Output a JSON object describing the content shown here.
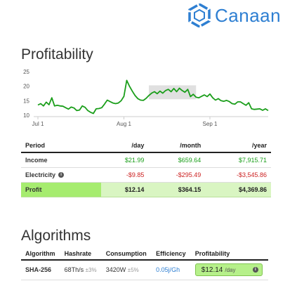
{
  "brand": {
    "name": "Canaan",
    "logo_color": "#2e7fd2"
  },
  "profitability": {
    "title": "Profitability",
    "chart_data": {
      "type": "line",
      "title": "",
      "xlabel": "",
      "ylabel": "",
      "ylim": [
        10,
        25
      ],
      "yticks": [
        10,
        15,
        20,
        25
      ],
      "x_tick_labels": [
        "Jul 1",
        "Aug 1",
        "Sep 1"
      ],
      "x_tick_index": [
        0,
        31,
        62
      ],
      "series": [
        {
          "color": "#1a9e1a",
          "values": [
            13.5,
            14,
            13.2,
            14.5,
            13.6,
            16,
            13.2,
            13.4,
            13.2,
            13.1,
            12.6,
            12.1,
            12.8,
            12.5,
            11.6,
            11.8,
            13.2,
            12.7,
            11.6,
            11.0,
            10.6,
            12.2,
            12.3,
            12.6,
            13.8,
            15.2,
            14.7,
            14.2,
            14.0,
            14.2,
            15.0,
            16.5,
            22.0,
            20.0,
            18.3,
            16.8,
            15.7,
            15.2,
            15.1,
            15.8,
            16.8,
            17.6,
            18.1,
            17.4,
            18.3,
            17.6,
            18.5,
            18.9,
            18.1,
            19.2,
            18.1,
            19.3,
            18.5,
            17.9,
            18.9,
            16.4,
            17.2,
            16.2,
            16.0,
            16.5,
            17.0,
            16.4,
            17.3,
            16.0,
            15.2,
            15.7,
            15.0,
            14.8,
            15.1,
            14.7,
            14.0,
            13.8,
            14.6,
            14.6,
            14.0,
            13.4,
            14.3,
            12.2,
            12.0,
            12.1,
            12.2,
            11.7,
            12.2,
            11.6
          ]
        }
      ],
      "highlight_band": {
        "x_from": 40,
        "x_to": 57,
        "y_from": 15.5,
        "y_to": 20.3,
        "color": "#e0e0e0"
      },
      "grid": false
    },
    "table": {
      "headers": [
        "Period",
        "/day",
        "/month",
        "/year"
      ],
      "rows": [
        {
          "label": "Income",
          "info": false,
          "values": [
            "$21.99",
            "$659.64",
            "$7,915.71"
          ],
          "tone": "green"
        },
        {
          "label": "Electricity",
          "info": true,
          "values": [
            "-$9.85",
            "-$295.49",
            "-$3,545.86"
          ],
          "tone": "red"
        }
      ],
      "profit": {
        "label": "Profit",
        "values": [
          "$12.14",
          "$364.15",
          "$4,369.86"
        ]
      }
    }
  },
  "algorithms": {
    "title": "Algorithms",
    "headers": [
      "Algorithm",
      "Hashrate",
      "Consumption",
      "Efficiency",
      "Profitability"
    ],
    "rows": [
      {
        "algorithm": "SHA-256",
        "hashrate": "68Th/s",
        "hashrate_tol": "±3%",
        "consumption": "3420W",
        "consumption_tol": "±5%",
        "efficiency": "0.05j/Gh",
        "profitability": "$12.14",
        "profitability_unit": "/day"
      }
    ]
  }
}
